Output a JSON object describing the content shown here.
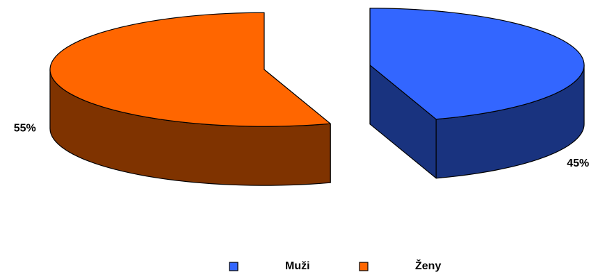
{
  "chart_data": {
    "type": "pie",
    "categories": [
      "Muži",
      "Ženy"
    ],
    "values": [
      45,
      55
    ],
    "value_labels": [
      "45%",
      "55%"
    ],
    "colors": [
      "#3366ff",
      "#ff6600"
    ],
    "legend": "bottom"
  }
}
